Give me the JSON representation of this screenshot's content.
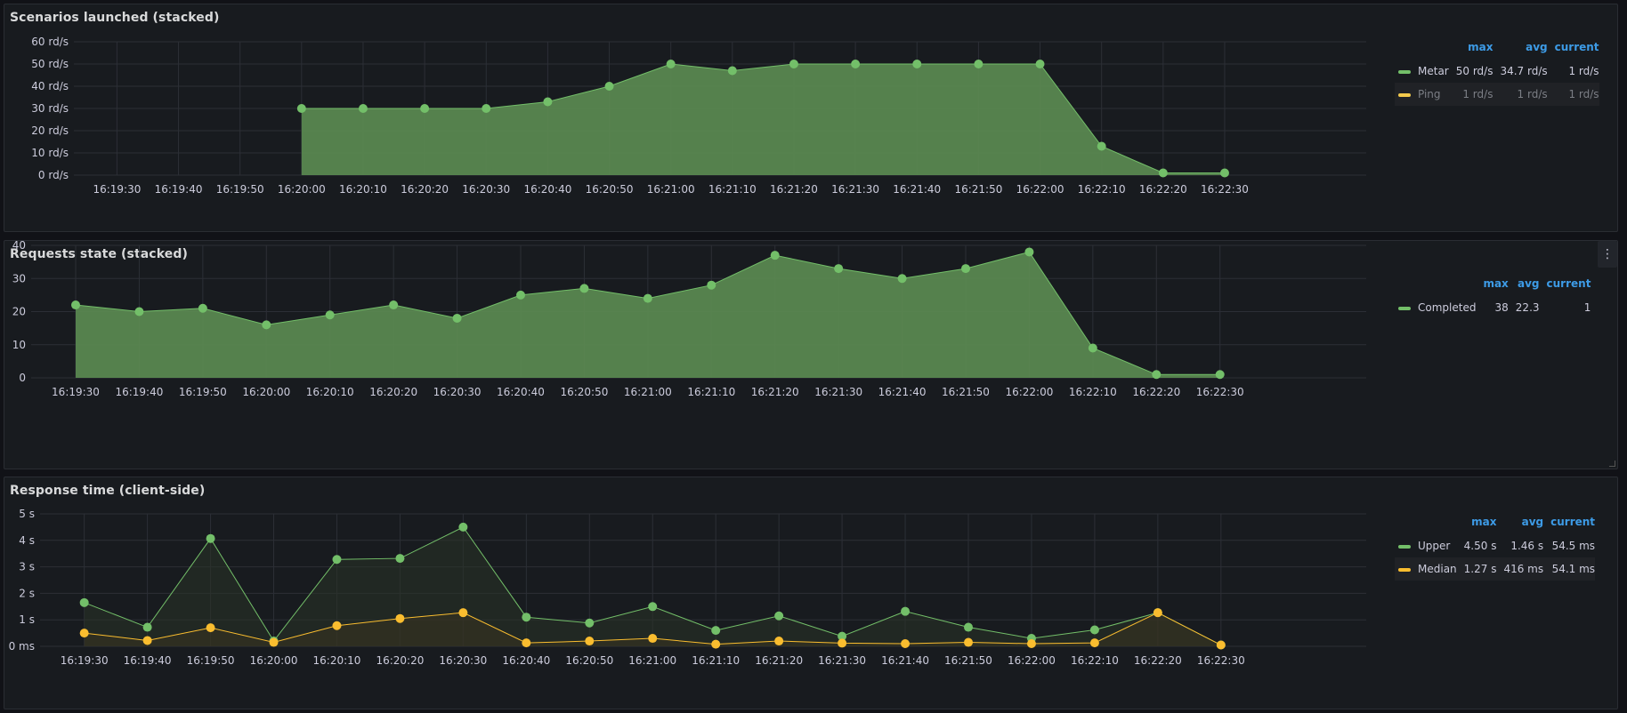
{
  "panels": [
    {
      "title": "Scenarios launched (stacked)",
      "legend": {
        "columns": [
          "max",
          "avg",
          "current"
        ],
        "rows": [
          {
            "name": "Metar",
            "color": "#73bf69",
            "max": "50 rd/s",
            "avg": "34.7 rd/s",
            "current": "1 rd/s",
            "dim": false
          },
          {
            "name": "Ping",
            "color": "#f2c94c",
            "max": "1 rd/s",
            "avg": "1 rd/s",
            "current": "1 rd/s",
            "dim": true
          }
        ]
      }
    },
    {
      "title": "Requests state (stacked)",
      "menu_icon": "⋮",
      "legend": {
        "columns": [
          "max",
          "avg",
          "current"
        ],
        "rows": [
          {
            "name": "Completed",
            "color": "#73bf69",
            "max": "38",
            "avg": "22.3",
            "current": "1",
            "dim": false
          }
        ]
      }
    },
    {
      "title": "Response time (client-side)",
      "legend": {
        "columns": [
          "max",
          "avg",
          "current"
        ],
        "rows": [
          {
            "name": "Upper",
            "color": "#73bf69",
            "max": "4.50 s",
            "avg": "1.46 s",
            "current": "54.5 ms",
            "dim": false
          },
          {
            "name": "Median",
            "color": "#fabd2f",
            "max": "1.27 s",
            "avg": "416 ms",
            "current": "54.1 ms",
            "dim": false
          }
        ]
      }
    }
  ],
  "chart_data": [
    {
      "type": "area",
      "title": "Scenarios launched (stacked)",
      "x": [
        "16:19:30",
        "16:19:40",
        "16:19:50",
        "16:20:00",
        "16:20:10",
        "16:20:20",
        "16:20:30",
        "16:20:40",
        "16:20:50",
        "16:21:00",
        "16:21:10",
        "16:21:20",
        "16:21:30",
        "16:21:40",
        "16:21:50",
        "16:22:00",
        "16:22:10",
        "16:22:20",
        "16:22:30"
      ],
      "x_range": [
        "16:19:23",
        "16:22:53"
      ],
      "ylim": [
        0,
        60
      ],
      "yticks": [
        "0 rd/s",
        "10 rd/s",
        "20 rd/s",
        "30 rd/s",
        "40 rd/s",
        "50 rd/s",
        "60 rd/s"
      ],
      "series": [
        {
          "name": "Metar",
          "color": "#73bf69",
          "fill": "#5b8a51",
          "points": [
            [
              "16:20:00",
              30
            ],
            [
              "16:20:10",
              30
            ],
            [
              "16:20:20",
              30
            ],
            [
              "16:20:30",
              30
            ],
            [
              "16:20:40",
              33
            ],
            [
              "16:20:50",
              40
            ],
            [
              "16:21:00",
              50
            ],
            [
              "16:21:10",
              47
            ],
            [
              "16:21:20",
              50
            ],
            [
              "16:21:30",
              50
            ],
            [
              "16:21:40",
              50
            ],
            [
              "16:21:50",
              50
            ],
            [
              "16:22:00",
              50
            ],
            [
              "16:22:10",
              13
            ],
            [
              "16:22:20",
              1
            ],
            [
              "16:22:30",
              1
            ]
          ]
        }
      ],
      "grid": true,
      "legend": "right"
    },
    {
      "type": "area",
      "title": "Requests state (stacked)",
      "x": [
        "16:19:30",
        "16:19:40",
        "16:19:50",
        "16:20:00",
        "16:20:10",
        "16:20:20",
        "16:20:30",
        "16:20:40",
        "16:20:50",
        "16:21:00",
        "16:21:10",
        "16:21:20",
        "16:21:30",
        "16:21:40",
        "16:21:50",
        "16:22:00",
        "16:22:10",
        "16:22:20",
        "16:22:30"
      ],
      "x_range": [
        "16:19:23",
        "16:22:53"
      ],
      "ylim": [
        0,
        40
      ],
      "yticks": [
        "0",
        "10",
        "20",
        "30",
        "40"
      ],
      "series": [
        {
          "name": "Completed",
          "color": "#73bf69",
          "fill": "#5b8a51",
          "points": [
            [
              "16:19:30",
              22
            ],
            [
              "16:19:40",
              20
            ],
            [
              "16:19:50",
              21
            ],
            [
              "16:20:00",
              16
            ],
            [
              "16:20:10",
              19
            ],
            [
              "16:20:20",
              22
            ],
            [
              "16:20:30",
              18
            ],
            [
              "16:20:40",
              25
            ],
            [
              "16:20:50",
              27
            ],
            [
              "16:21:00",
              24
            ],
            [
              "16:21:10",
              28
            ],
            [
              "16:21:20",
              37
            ],
            [
              "16:21:30",
              33
            ],
            [
              "16:21:40",
              30
            ],
            [
              "16:21:50",
              33
            ],
            [
              "16:22:00",
              38
            ],
            [
              "16:22:10",
              9
            ],
            [
              "16:22:20",
              1
            ],
            [
              "16:22:30",
              1
            ]
          ]
        }
      ],
      "grid": true,
      "legend": "right"
    },
    {
      "type": "line",
      "title": "Response time (client-side)",
      "x": [
        "16:19:30",
        "16:19:40",
        "16:19:50",
        "16:20:00",
        "16:20:10",
        "16:20:20",
        "16:20:30",
        "16:20:40",
        "16:20:50",
        "16:21:00",
        "16:21:10",
        "16:21:20",
        "16:21:30",
        "16:21:40",
        "16:21:50",
        "16:22:00",
        "16:22:10",
        "16:22:20",
        "16:22:30"
      ],
      "x_range": [
        "16:19:23",
        "16:22:53"
      ],
      "ylim": [
        0,
        5
      ],
      "yticks": [
        "0 ms",
        "1 s",
        "2 s",
        "3 s",
        "4 s",
        "5 s"
      ],
      "series": [
        {
          "name": "Upper",
          "color": "#73bf69",
          "fill": "#2a3326",
          "points": [
            [
              "16:19:30",
              1.65
            ],
            [
              "16:19:40",
              0.72
            ],
            [
              "16:19:50",
              4.07
            ],
            [
              "16:20:00",
              0.2
            ],
            [
              "16:20:10",
              3.28
            ],
            [
              "16:20:20",
              3.32
            ],
            [
              "16:20:30",
              4.5
            ],
            [
              "16:20:40",
              1.1
            ],
            [
              "16:20:50",
              0.88
            ],
            [
              "16:21:00",
              1.5
            ],
            [
              "16:21:10",
              0.6
            ],
            [
              "16:21:20",
              1.15
            ],
            [
              "16:21:30",
              0.38
            ],
            [
              "16:21:40",
              1.32
            ],
            [
              "16:21:50",
              0.72
            ],
            [
              "16:22:00",
              0.3
            ],
            [
              "16:22:10",
              0.62
            ],
            [
              "16:22:20",
              1.27
            ],
            [
              "16:22:30",
              0.05
            ]
          ]
        },
        {
          "name": "Median",
          "color": "#fabd2f",
          "fill": "#3a3320",
          "points": [
            [
              "16:19:30",
              0.5
            ],
            [
              "16:19:40",
              0.22
            ],
            [
              "16:19:50",
              0.7
            ],
            [
              "16:20:00",
              0.15
            ],
            [
              "16:20:10",
              0.78
            ],
            [
              "16:20:20",
              1.05
            ],
            [
              "16:20:30",
              1.27
            ],
            [
              "16:20:40",
              0.13
            ],
            [
              "16:20:50",
              0.2
            ],
            [
              "16:21:00",
              0.3
            ],
            [
              "16:21:10",
              0.08
            ],
            [
              "16:21:20",
              0.2
            ],
            [
              "16:21:30",
              0.12
            ],
            [
              "16:21:40",
              0.1
            ],
            [
              "16:21:50",
              0.15
            ],
            [
              "16:22:00",
              0.1
            ],
            [
              "16:22:10",
              0.13
            ],
            [
              "16:22:20",
              1.27
            ],
            [
              "16:22:30",
              0.05
            ]
          ]
        }
      ],
      "grid": true,
      "legend": "right"
    }
  ]
}
